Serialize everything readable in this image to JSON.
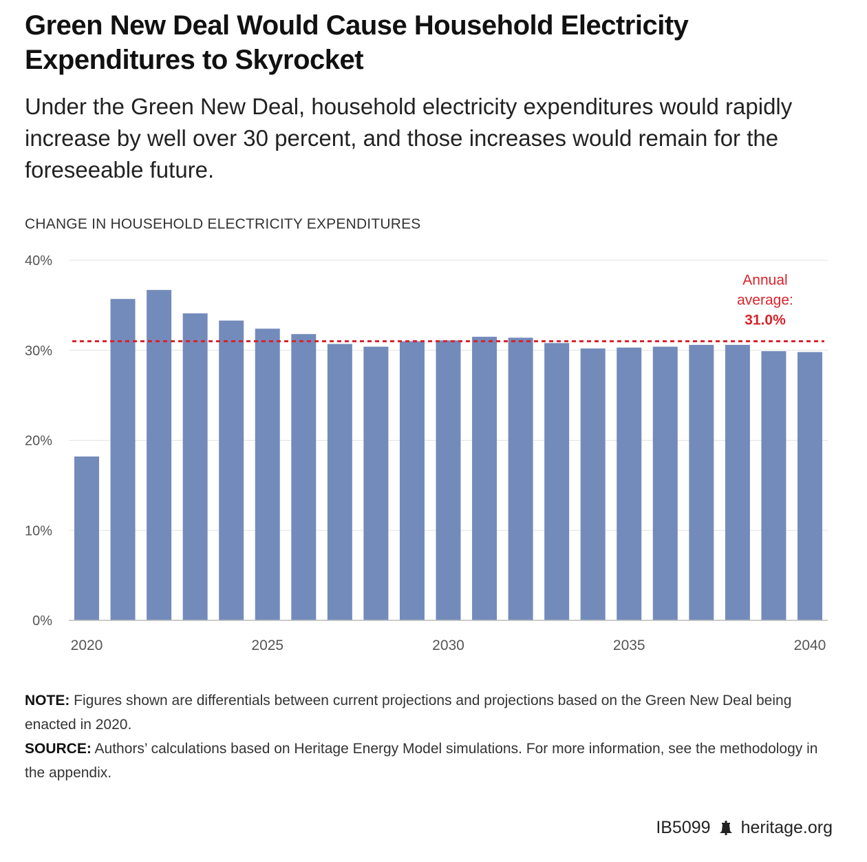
{
  "title": "Green New Deal Would Cause Household Electricity Expenditures to Skyrocket",
  "subtitle": "Under the Green New Deal, household electricity expenditures would rapidly increase by well over 30 percent, and those increases would remain for the foreseeable future.",
  "chart_label": "CHANGE IN HOUSEHOLD ELECTRICITY EXPENDITURES",
  "note": {
    "label": "NOTE:",
    "text": " Figures shown are differentials between current projections and projections based on the Green New Deal being enacted in 2020."
  },
  "source": {
    "label": "SOURCE:",
    "text": " Authors’ calculations based on Heritage Energy Model simulations. For more information, see the methodology in the appendix."
  },
  "footer": {
    "code": "IB5099",
    "site": "heritage.org",
    "icon": "liberty-bell-icon"
  },
  "colors": {
    "bar": "#738bbb",
    "average_line": "#d8232a",
    "grid": "#e2e2e2",
    "axis": "#bbbbbb"
  },
  "chart_data": {
    "type": "bar",
    "title": "CHANGE IN HOUSEHOLD ELECTRICITY EXPENDITURES",
    "categories": [
      "2020",
      "2021",
      "2022",
      "2023",
      "2024",
      "2025",
      "2026",
      "2027",
      "2028",
      "2029",
      "2030",
      "2031",
      "2032",
      "2033",
      "2034",
      "2035",
      "2036",
      "2037",
      "2038",
      "2039",
      "2040"
    ],
    "values": [
      18.2,
      35.7,
      36.7,
      34.1,
      33.3,
      32.4,
      31.8,
      30.7,
      30.4,
      31.0,
      31.1,
      31.5,
      31.4,
      30.8,
      30.2,
      30.3,
      30.4,
      30.6,
      30.6,
      29.9,
      29.8
    ],
    "x_tick_labels": [
      "2020",
      "2025",
      "2030",
      "2035",
      "2040"
    ],
    "y_ticks": [
      0,
      10,
      20,
      30,
      40
    ],
    "y_tick_labels": [
      "0%",
      "10%",
      "20%",
      "30%",
      "40%"
    ],
    "ylim": [
      0,
      40
    ],
    "grid": true,
    "average": {
      "value": 31.0,
      "label_line1": "Annual",
      "label_line2": "average:",
      "value_label": "31.0%"
    }
  }
}
